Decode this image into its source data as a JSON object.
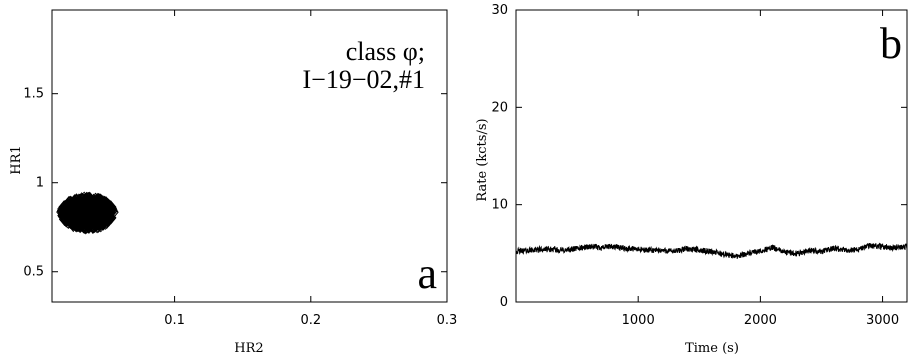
{
  "chart_data": [
    {
      "type": "scatter",
      "panel_label": "a",
      "annotation": [
        "class φ;",
        "I−19−02,#1"
      ],
      "xlabel": "HR2",
      "ylabel": "HR1",
      "xlim": [
        0.01,
        0.3
      ],
      "ylim": [
        0.33,
        1.97
      ],
      "x_ticks": [
        0.1,
        0.2,
        0.3
      ],
      "x_tick_labels": [
        "0.1",
        "0.2",
        "0.3"
      ],
      "y_ticks": [
        0.5,
        1.0,
        1.5
      ],
      "y_tick_labels": [
        "0.5",
        "1",
        "1.5"
      ],
      "marker": "open-diamond",
      "cluster": {
        "x_center": 0.036,
        "x_spread": 0.009,
        "y_center": 0.83,
        "y_spread": 0.04
      },
      "grid": false
    },
    {
      "type": "line",
      "panel_label": "b",
      "xlabel": "Time (s)",
      "ylabel": "Rate (kcts/s)",
      "xlim": [
        0,
        3200
      ],
      "ylim": [
        0,
        30
      ],
      "x_ticks": [
        1000,
        2000,
        3000
      ],
      "x_tick_labels": [
        "1000",
        "2000",
        "3000"
      ],
      "y_ticks": [
        0,
        10,
        20,
        30
      ],
      "y_tick_labels": [
        "0",
        "10",
        "20",
        "30"
      ],
      "grid": false,
      "series": [
        {
          "x": [
            0,
            100,
            200,
            300,
            400,
            500,
            600,
            700,
            800,
            900,
            1000,
            1100,
            1200,
            1300,
            1400,
            1500,
            1600,
            1700,
            1800,
            1900,
            2000,
            2100,
            2200,
            2300,
            2400,
            2500,
            2600,
            2700,
            2800,
            2900,
            3000,
            3100,
            3200
          ],
          "y": [
            5.2,
            5.3,
            5.4,
            5.4,
            5.3,
            5.5,
            5.7,
            5.6,
            5.7,
            5.5,
            5.4,
            5.3,
            5.3,
            5.2,
            5.5,
            5.3,
            5.2,
            4.9,
            4.7,
            5.0,
            5.2,
            5.6,
            5.1,
            5.0,
            5.3,
            5.2,
            5.5,
            5.3,
            5.4,
            5.8,
            5.7,
            5.6,
            5.7
          ],
          "noise": 0.3
        }
      ]
    }
  ]
}
